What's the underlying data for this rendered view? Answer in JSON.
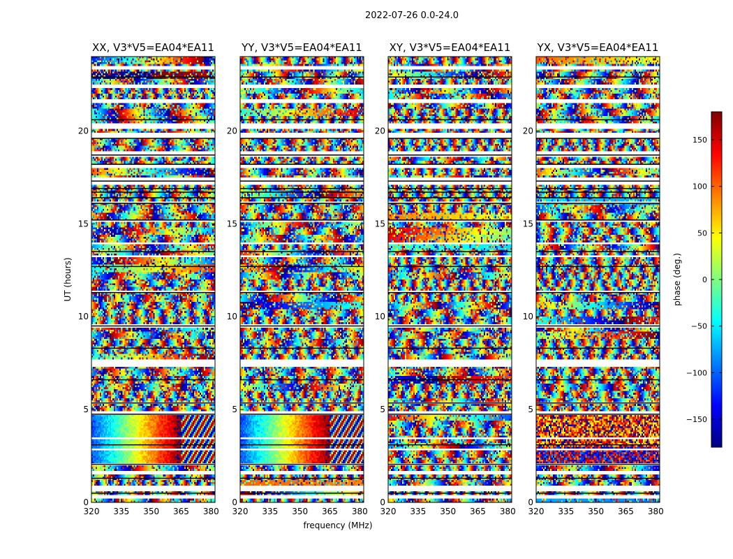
{
  "figure": {
    "suptitle": "2022-07-26 0.0-24.0",
    "shared_xlabel": "frequency (MHz)",
    "shared_ylabel": "UT (hours)"
  },
  "chart_data": [
    {
      "type": "heatmap",
      "title": "XX, V3*V5=EA04*EA11",
      "xlabel": "frequency (MHz)",
      "ylabel": "UT (hours)",
      "xlim": [
        320,
        382
      ],
      "ylim": [
        0,
        24
      ],
      "xticks": [
        320,
        335,
        350,
        365,
        380
      ],
      "yticks": [
        0,
        5,
        10,
        15,
        20
      ],
      "cell_values": "phase (deg.) per frequency channel vs UT; wrapped phase fringes, with a smooth gradient from about -100 deg at 320 MHz to about 180 deg near 365 MHz between UT 2.0 and 4.7 h"
    },
    {
      "type": "heatmap",
      "title": "YY, V3*V5=EA04*EA11",
      "xlim": [
        320,
        382
      ],
      "ylim": [
        0,
        24
      ],
      "xticks": [
        320,
        335,
        350,
        365,
        380
      ],
      "yticks": [
        0,
        5,
        10,
        15,
        20
      ],
      "cell_values": "phase (deg.) per frequency channel vs UT; same coherent phase gradient as XX between UT 2.0 and 4.7 h"
    },
    {
      "type": "heatmap",
      "title": "XY, V3*V5=EA04*EA11",
      "xlim": [
        320,
        382
      ],
      "ylim": [
        0,
        24
      ],
      "xticks": [
        320,
        335,
        350,
        365,
        380
      ],
      "yticks": [
        0,
        5,
        10,
        15,
        20
      ],
      "cell_values": "phase (deg.) per frequency channel vs UT; mostly noise-like cross-hand phase"
    },
    {
      "type": "heatmap",
      "title": "YX, V3*V5=EA04*EA11",
      "xlim": [
        320,
        382
      ],
      "ylim": [
        0,
        24
      ],
      "xticks": [
        320,
        335,
        350,
        365,
        380
      ],
      "yticks": [
        0,
        5,
        10,
        15,
        20
      ],
      "cell_values": "phase (deg.) per frequency channel vs UT; mostly noise-like cross-hand phase"
    }
  ],
  "colorbar": {
    "label": "phase (deg.)",
    "range": [
      -180,
      180
    ],
    "ticks": [
      "150",
      "100",
      "50",
      "0",
      "−50",
      "−100",
      "−150"
    ],
    "tick_values": [
      150,
      100,
      50,
      0,
      -50,
      -100,
      -150
    ],
    "colormap": "jet",
    "stops": [
      "#00007f",
      "#0000ff",
      "#007fff",
      "#00ffff",
      "#7fff7f",
      "#ffff00",
      "#ff7f00",
      "#ff0000",
      "#7f0000"
    ]
  },
  "flagged_bands_ut_hours": [
    [
      0.2,
      0.4
    ],
    [
      0.6,
      0.9
    ],
    [
      1.5,
      1.6
    ],
    [
      2.0,
      2.1
    ],
    [
      2.8,
      2.85
    ],
    [
      3.4,
      3.45
    ],
    [
      4.7,
      4.85
    ],
    [
      5.3,
      5.4
    ],
    [
      7.3,
      7.6
    ],
    [
      9.4,
      9.6
    ],
    [
      11.3,
      11.4
    ],
    [
      13.2,
      13.3
    ],
    [
      13.9,
      14.0
    ],
    [
      15.1,
      15.2
    ],
    [
      16.1,
      16.2
    ],
    [
      17.2,
      17.5
    ],
    [
      18.0,
      18.1
    ],
    [
      18.6,
      18.8
    ],
    [
      19.6,
      19.8
    ],
    [
      20.2,
      20.4
    ],
    [
      21.5,
      21.6
    ],
    [
      22.3,
      22.5
    ],
    [
      23.3,
      23.5
    ]
  ],
  "dark_lines_ut_hours": [
    0.5,
    1.3,
    2.05,
    3.1,
    4.75,
    5.35,
    6.6,
    8.3,
    9.5,
    11.3,
    12.7,
    13.5,
    15.2,
    16.1,
    16.4,
    16.7,
    16.9,
    17.3,
    18.2,
    18.7,
    19.6,
    20.6,
    22.9
  ]
}
